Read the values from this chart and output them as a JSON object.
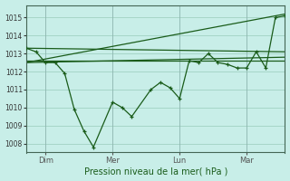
{
  "background_color": "#c8eee8",
  "grid_color": "#99ccbb",
  "line_color": "#1a5c1a",
  "xlabel": "Pression niveau de la mer( hPa )",
  "ylim": [
    1007.5,
    1015.7
  ],
  "yticks": [
    1008,
    1009,
    1010,
    1011,
    1012,
    1013,
    1014,
    1015
  ],
  "xtick_labels": [
    "Dim",
    "Mer",
    "Lun",
    "Mar"
  ],
  "xtick_positions": [
    2,
    9,
    16,
    23
  ],
  "xlim": [
    0,
    27
  ],
  "smooth_line1_x": [
    0,
    27
  ],
  "smooth_line1_y": [
    1012.6,
    1012.6
  ],
  "smooth_line2_x": [
    0,
    27
  ],
  "smooth_line2_y": [
    1012.5,
    1012.8
  ],
  "smooth_line3_x": [
    0,
    27
  ],
  "smooth_line3_y": [
    1012.5,
    1015.2
  ],
  "main_x": [
    0,
    1,
    2,
    3,
    4,
    5,
    6,
    7,
    9,
    10,
    11,
    13,
    14,
    15,
    16,
    17,
    18,
    19,
    20,
    21,
    22,
    23,
    24,
    25,
    26,
    27
  ],
  "main_y": [
    1013.3,
    1013.1,
    1012.5,
    1012.5,
    1011.9,
    1009.9,
    1008.7,
    1007.8,
    1010.3,
    1010.0,
    1009.5,
    1011.0,
    1011.4,
    1011.1,
    1010.5,
    1012.6,
    1012.5,
    1013.0,
    1012.5,
    1012.4,
    1012.2,
    1012.2,
    1013.1,
    1012.2,
    1015.0,
    1015.1
  ],
  "smooth_line4_x": [
    0,
    27
  ],
  "smooth_line4_y": [
    1013.3,
    1013.1
  ]
}
